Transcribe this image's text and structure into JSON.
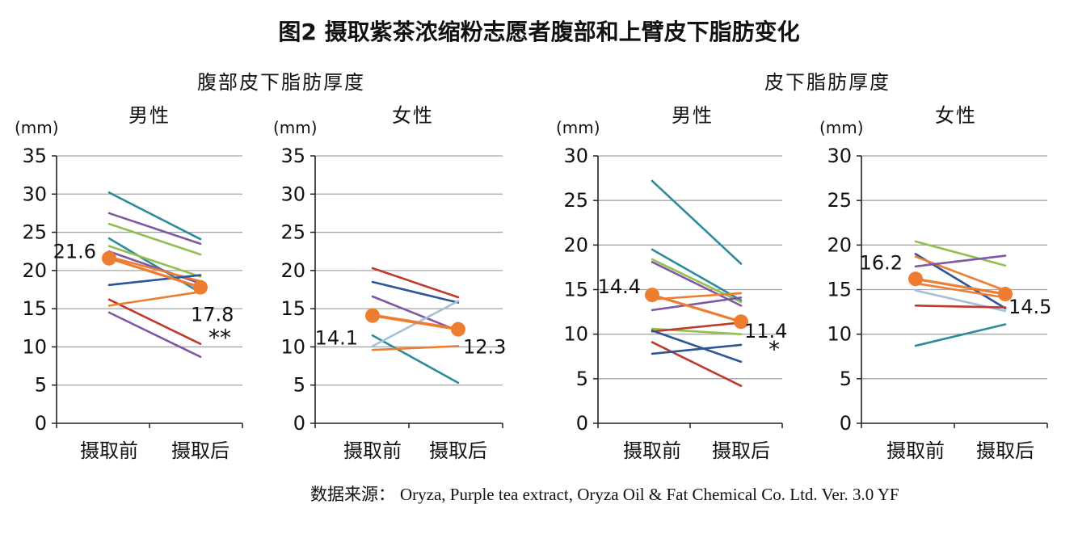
{
  "title": "图2 摄取紫茶浓缩粉志愿者腹部和上臂皮下脂肪变化",
  "group_titles": [
    "腹部皮下脂肪厚度",
    "皮下脂肪厚度"
  ],
  "source": {
    "label": "数据来源：",
    "text": "Oryza, Purple tea extract, Oryza Oil & Fat Chemical Co. Ltd. Ver. 3.0 YF"
  },
  "colors": {
    "mean": "#ED7D31",
    "palette": [
      "#2E8B9A",
      "#7E57A5",
      "#92C050",
      "#2F5597",
      "#C0392B",
      "#ED7D31",
      "#A5C0D6"
    ]
  },
  "chart_data": [
    {
      "type": "line",
      "title": "男性",
      "ylabel": "(mm)",
      "categories": [
        "摄取前",
        "摄取后"
      ],
      "ylim": [
        0,
        35
      ],
      "yticks": [
        0,
        5,
        10,
        15,
        20,
        25,
        30,
        35
      ],
      "grid": true,
      "mean": [
        21.6,
        17.8
      ],
      "mean_labels": [
        "21.6",
        "17.8"
      ],
      "significance": "**",
      "series": [
        {
          "values": [
            30.2,
            24.1
          ],
          "color": "#2E8B9A"
        },
        {
          "values": [
            27.5,
            23.5
          ],
          "color": "#7E57A5"
        },
        {
          "values": [
            26.1,
            22.1
          ],
          "color": "#92C050"
        },
        {
          "values": [
            24.2,
            17.1
          ],
          "color": "#2E8B9A"
        },
        {
          "values": [
            23.2,
            19.2
          ],
          "color": "#92C050"
        },
        {
          "values": [
            22.5,
            18.3
          ],
          "color": "#7E57A5"
        },
        {
          "values": [
            21.8,
            18.6
          ],
          "color": "#ED7D31"
        },
        {
          "values": [
            18.1,
            19.4
          ],
          "color": "#2F5597"
        },
        {
          "values": [
            16.2,
            10.4
          ],
          "color": "#C0392B"
        },
        {
          "values": [
            15.4,
            17.2
          ],
          "color": "#ED7D31"
        },
        {
          "values": [
            14.5,
            8.7
          ],
          "color": "#7E57A5"
        }
      ]
    },
    {
      "type": "line",
      "title": "女性",
      "ylabel": "(mm)",
      "categories": [
        "摄取前",
        "摄取后"
      ],
      "ylim": [
        0,
        35
      ],
      "yticks": [
        0,
        5,
        10,
        15,
        20,
        25,
        30,
        35
      ],
      "grid": true,
      "mean": [
        14.1,
        12.3
      ],
      "mean_labels": [
        "14.1",
        "12.3"
      ],
      "significance": "",
      "series": [
        {
          "values": [
            20.3,
            16.5
          ],
          "color": "#C0392B"
        },
        {
          "values": [
            18.5,
            15.8
          ],
          "color": "#2F5597"
        },
        {
          "values": [
            16.6,
            12.1
          ],
          "color": "#7E57A5"
        },
        {
          "values": [
            14.2,
            12.4
          ],
          "color": "#ED7D31"
        },
        {
          "values": [
            11.5,
            5.3
          ],
          "color": "#2E8B9A"
        },
        {
          "values": [
            10.1,
            16.0
          ],
          "color": "#A5C0D6"
        },
        {
          "values": [
            9.6,
            10.1
          ],
          "color": "#ED7D31"
        }
      ]
    },
    {
      "type": "line",
      "title": "男性",
      "ylabel": "(mm)",
      "categories": [
        "摄取前",
        "摄取后"
      ],
      "ylim": [
        0,
        30
      ],
      "yticks": [
        0,
        5,
        10,
        15,
        20,
        25,
        30
      ],
      "grid": true,
      "mean": [
        14.4,
        11.4
      ],
      "mean_labels": [
        "14.4",
        "11.4"
      ],
      "significance": "*",
      "series": [
        {
          "values": [
            27.2,
            17.9
          ],
          "color": "#2E8B9A"
        },
        {
          "values": [
            19.5,
            13.8
          ],
          "color": "#2E8B9A"
        },
        {
          "values": [
            18.4,
            13.6
          ],
          "color": "#92C050"
        },
        {
          "values": [
            18.1,
            13.2
          ],
          "color": "#7E57A5"
        },
        {
          "values": [
            13.9,
            14.6
          ],
          "color": "#ED7D31"
        },
        {
          "values": [
            12.7,
            14.1
          ],
          "color": "#7E57A5"
        },
        {
          "values": [
            10.6,
            10.0
          ],
          "color": "#92C050"
        },
        {
          "values": [
            10.3,
            11.3
          ],
          "color": "#C0392B"
        },
        {
          "values": [
            10.4,
            6.9
          ],
          "color": "#2F5597"
        },
        {
          "values": [
            9.1,
            4.2
          ],
          "color": "#C0392B"
        },
        {
          "values": [
            7.8,
            8.8
          ],
          "color": "#2F5597"
        }
      ]
    },
    {
      "type": "line",
      "title": "女性",
      "ylabel": "(mm)",
      "categories": [
        "摄取前",
        "摄取后"
      ],
      "ylim": [
        0,
        30
      ],
      "yticks": [
        0,
        5,
        10,
        15,
        20,
        25,
        30
      ],
      "grid": true,
      "mean": [
        16.2,
        14.5
      ],
      "mean_labels": [
        "16.2",
        "14.5"
      ],
      "significance": "",
      "series": [
        {
          "values": [
            20.4,
            17.7
          ],
          "color": "#92C050"
        },
        {
          "values": [
            19.0,
            12.9
          ],
          "color": "#2F5597"
        },
        {
          "values": [
            18.7,
            14.9
          ],
          "color": "#ED7D31"
        },
        {
          "values": [
            17.6,
            18.8
          ],
          "color": "#7E57A5"
        },
        {
          "values": [
            15.7,
            14.1
          ],
          "color": "#ED7D31"
        },
        {
          "values": [
            14.9,
            12.6
          ],
          "color": "#A5C0D6"
        },
        {
          "values": [
            13.2,
            13.0
          ],
          "color": "#C0392B"
        },
        {
          "values": [
            8.7,
            11.1
          ],
          "color": "#2E8B9A"
        }
      ]
    }
  ]
}
